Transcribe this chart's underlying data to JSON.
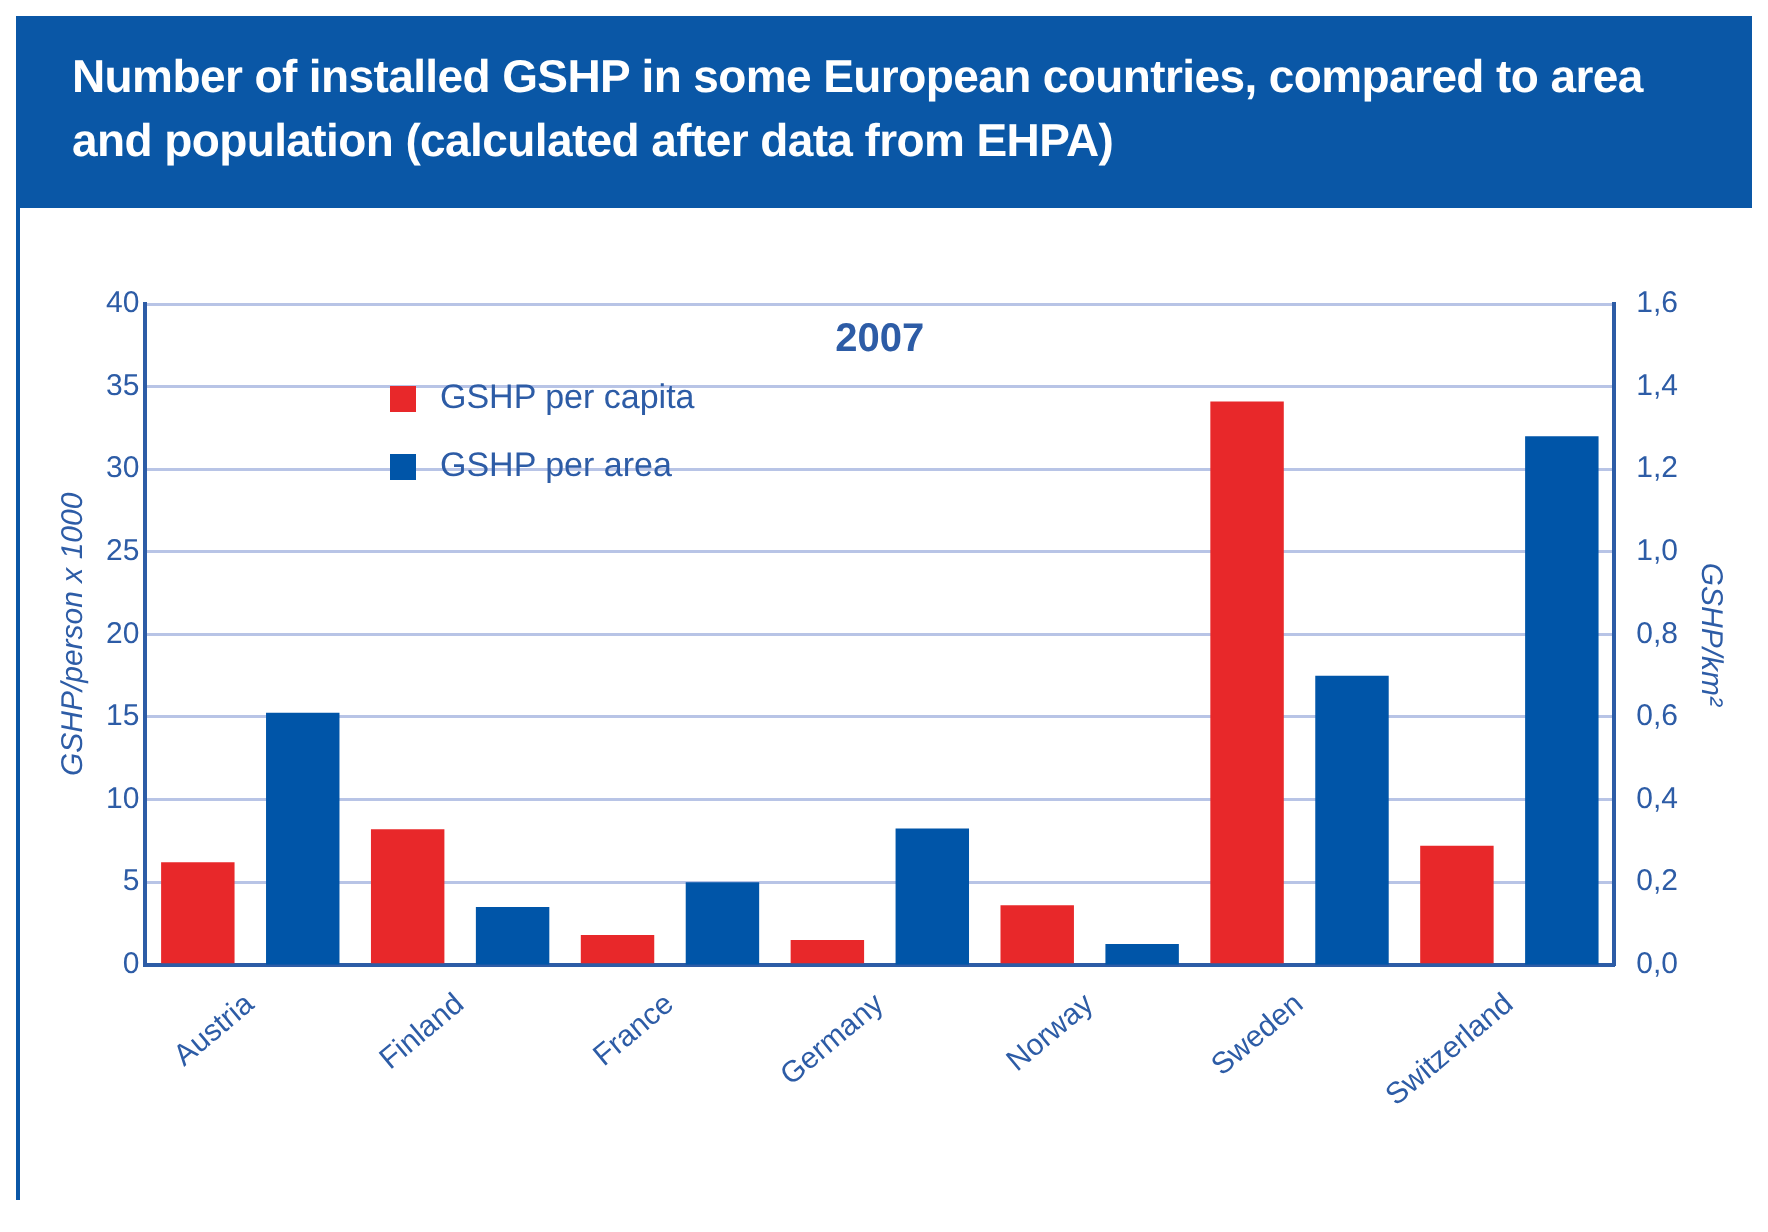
{
  "chart_data": {
    "type": "bar",
    "title": "Number of installed GSHP in some European countries, compared to area and population (calculated after data from EHPA)",
    "subtitle": "2007",
    "categories": [
      "Austria",
      "Finland",
      "France",
      "Germany",
      "Norway",
      "Sweden",
      "Switzerland"
    ],
    "series": [
      {
        "name": "GSHP per capita",
        "color": "#e8282a",
        "values": [
          6.2,
          8.2,
          1.8,
          1.5,
          3.6,
          34.1,
          7.2
        ]
      },
      {
        "name": "GSHP per area",
        "color": "#0055a8",
        "axis": "y2",
        "values": [
          0.61,
          0.14,
          0.2,
          0.33,
          0.05,
          0.7,
          1.28
        ]
      }
    ],
    "ylabel": "GSHP/person x 1000",
    "y2label": "GSHP/km²",
    "ylim": [
      0,
      40
    ],
    "yticks": [
      0,
      5,
      10,
      15,
      20,
      25,
      30,
      35,
      40
    ],
    "y2lim": [
      0,
      1.6
    ],
    "y2ticks": [
      {
        "value": 0,
        "label": "0,0"
      },
      {
        "value": 0.2,
        "label": "0,2"
      },
      {
        "value": 0.4,
        "label": "0,4"
      },
      {
        "value": 0.6,
        "label": "0,6"
      },
      {
        "value": 0.8,
        "label": "0,8"
      },
      {
        "value": 1.0,
        "label": "1,0"
      },
      {
        "value": 1.2,
        "label": "1,2"
      },
      {
        "value": 1.4,
        "label": "1,4"
      },
      {
        "value": 1.6,
        "label": "1,6"
      }
    ],
    "grid": "y",
    "legend": "top left"
  }
}
